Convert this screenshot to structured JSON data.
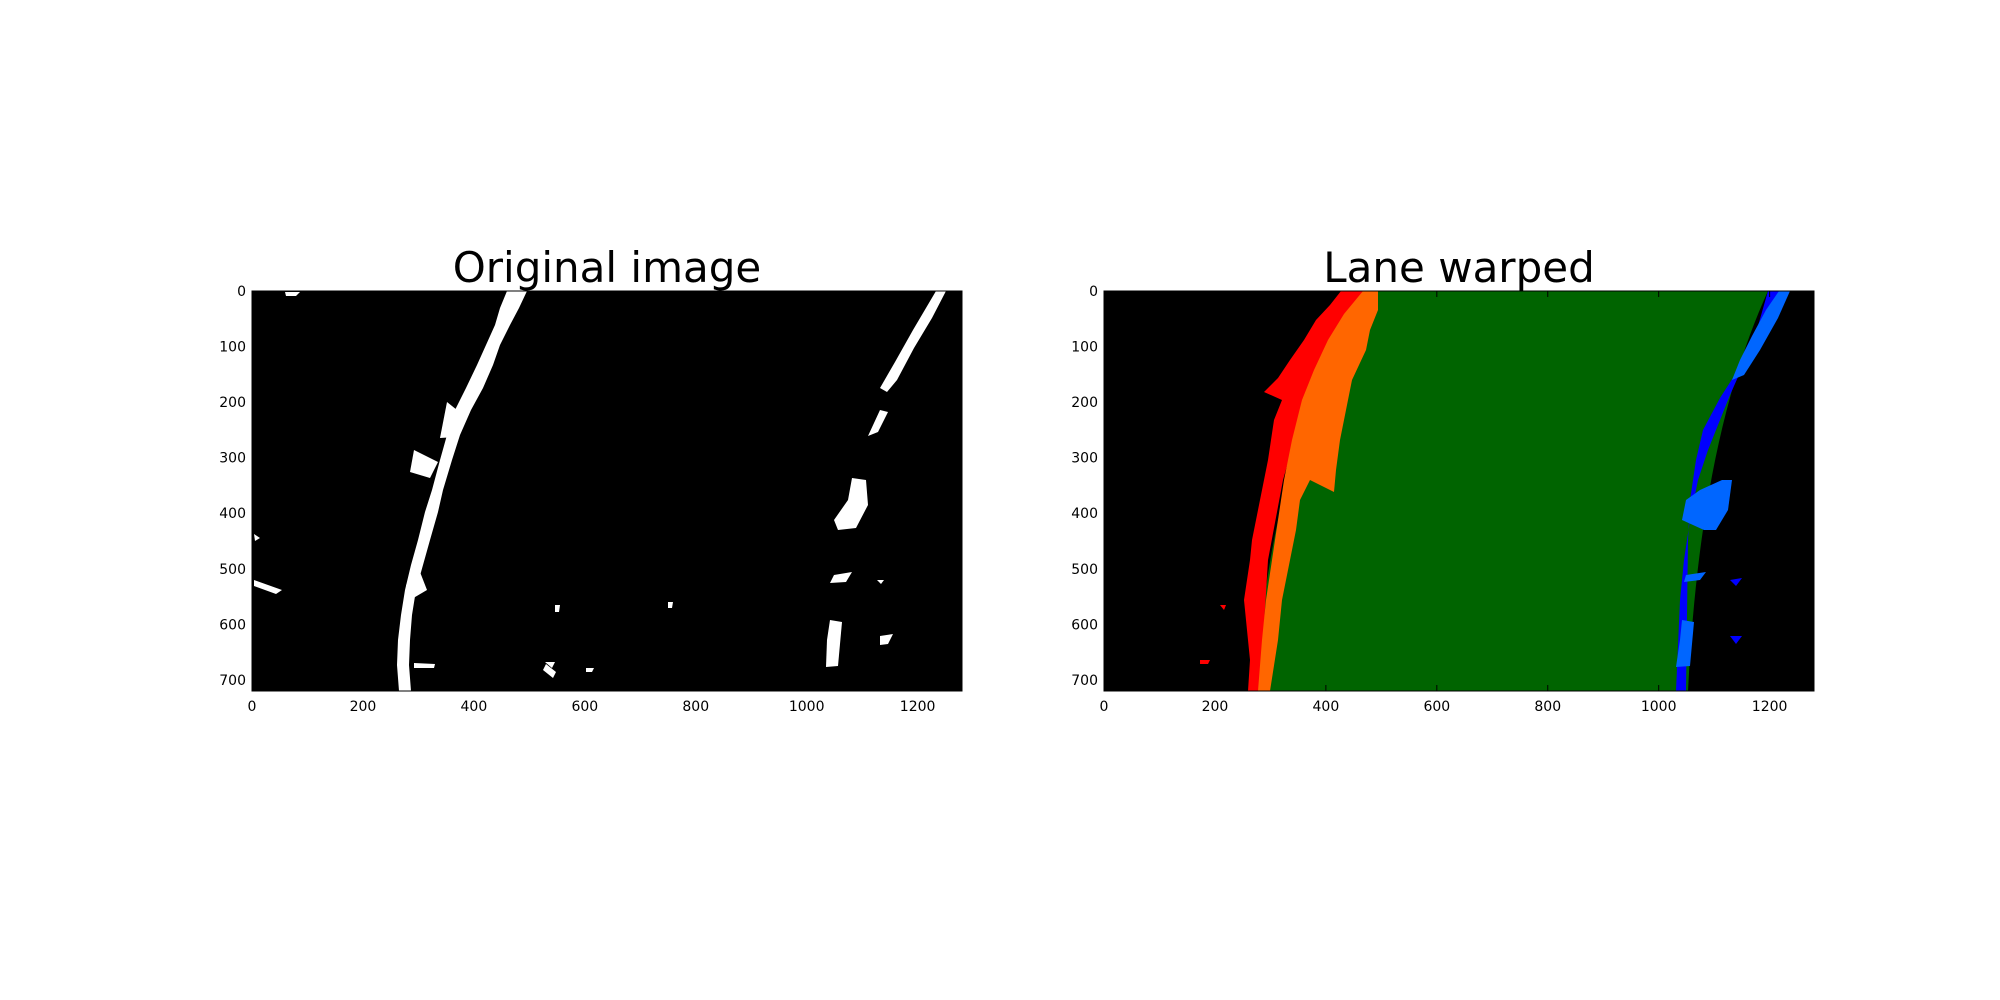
{
  "figure": {
    "panels": [
      {
        "title": "Original image"
      },
      {
        "title": "Lane warped"
      }
    ]
  },
  "chart_data": [
    {
      "type": "image",
      "title": "Original image",
      "xlabel": "",
      "ylabel": "",
      "xlim": [
        0,
        1280
      ],
      "ylim": [
        720,
        0
      ],
      "xticks": [
        0,
        200,
        400,
        600,
        800,
        1000,
        1200
      ],
      "yticks": [
        0,
        100,
        200,
        300,
        400,
        500,
        600,
        700
      ],
      "background": "#000000",
      "colors": {
        "lane_pixels": "#ffffff"
      }
    },
    {
      "type": "image",
      "title": "Lane warped",
      "xlabel": "",
      "ylabel": "",
      "xlim": [
        0,
        1280
      ],
      "ylim": [
        720,
        0
      ],
      "xticks": [
        0,
        200,
        400,
        600,
        800,
        1000,
        1200
      ],
      "yticks": [
        0,
        100,
        200,
        300,
        400,
        500,
        600,
        700
      ],
      "background": "#000000",
      "colors": {
        "lane_area": "#006400",
        "left_lane_pixels": "#ff0000",
        "left_window": "#ff6600",
        "right_lane_pixels": "#0000ff",
        "right_window": "#0066ff"
      }
    }
  ]
}
